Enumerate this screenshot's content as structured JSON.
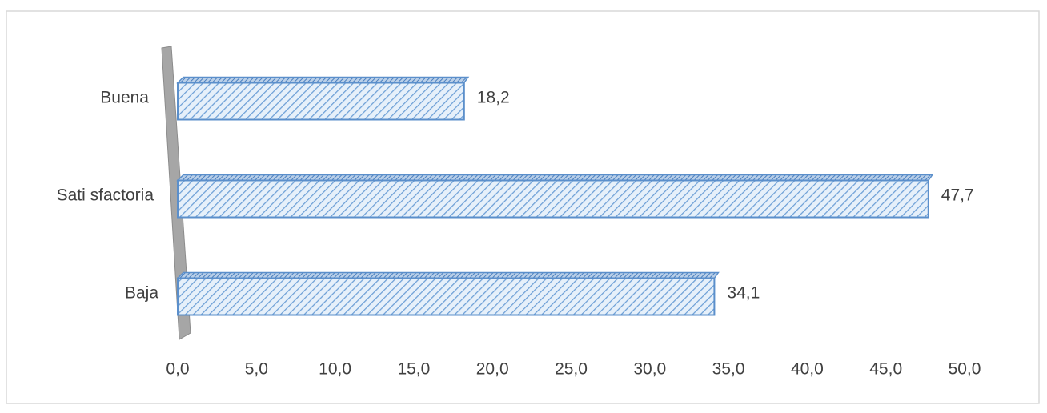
{
  "chart_data": {
    "type": "barh",
    "categories": [
      "Buena",
      "Sati sfactoria",
      "Baja"
    ],
    "values": [
      18.2,
      47.7,
      34.1
    ],
    "value_labels": [
      "18,2",
      "47,7",
      "34,1"
    ],
    "color": "#5b8fcb",
    "xlim": [
      0,
      50
    ],
    "xticks": [
      {
        "value": 0,
        "label": "0,0"
      },
      {
        "value": 5,
        "label": "5,0"
      },
      {
        "value": 10,
        "label": "10,0"
      },
      {
        "value": 15,
        "label": "15,0"
      },
      {
        "value": 20,
        "label": "20,0"
      },
      {
        "value": 25,
        "label": "25,0"
      },
      {
        "value": 30,
        "label": "30,0"
      },
      {
        "value": 35,
        "label": "35,0"
      },
      {
        "value": 40,
        "label": "40,0"
      },
      {
        "value": 45,
        "label": "45,0"
      },
      {
        "value": 50,
        "label": "50,0"
      }
    ],
    "grid": false
  }
}
